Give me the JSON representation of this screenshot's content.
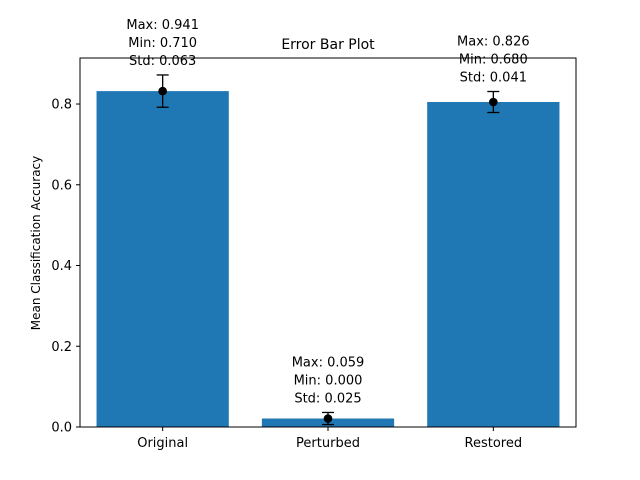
{
  "chart_data": {
    "type": "bar",
    "title": "Error Bar Plot",
    "xlabel": "",
    "ylabel": "Mean Classification Accuracy",
    "categories": [
      "Original",
      "Perturbed",
      "Restored"
    ],
    "values": [
      0.832,
      0.021,
      0.805
    ],
    "errors": [
      0.04,
      0.015,
      0.026
    ],
    "annotations": [
      [
        "Max: 0.941",
        "Min: 0.710",
        "Std: 0.063"
      ],
      [
        "Max: 0.059",
        "Min: 0.000",
        "Std: 0.025"
      ],
      [
        "Max: 0.826",
        "Min: 0.680",
        "Std: 0.041"
      ]
    ],
    "yticks": [
      "0.0",
      "0.2",
      "0.4",
      "0.6",
      "0.8"
    ],
    "ylim": [
      0,
      0.914
    ],
    "grid": false,
    "bar_color": "#1f77b4",
    "marker_color": "#000000"
  }
}
